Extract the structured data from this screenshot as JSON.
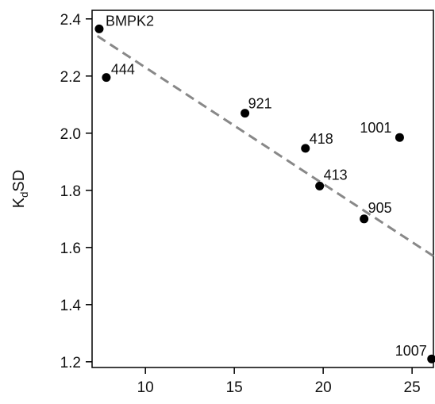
{
  "chart_data": {
    "type": "scatter",
    "title": "",
    "xlabel": "",
    "ylabel": "SD",
    "ylabel_prefix": "K",
    "ylabel_subscript": "d",
    "xlim": [
      7.0,
      26.2
    ],
    "ylim": [
      1.18,
      2.43
    ],
    "xticks": [
      10,
      15,
      20,
      25
    ],
    "xtick_labels": [
      "10",
      "15",
      "20",
      "25"
    ],
    "yticks": [
      1.2,
      1.4,
      1.6,
      1.8,
      2.0,
      2.2,
      2.4
    ],
    "ytick_labels": [
      "1.2",
      "1.4",
      "1.6",
      "1.8",
      "2.0",
      "2.2",
      "2.4"
    ],
    "grid": false,
    "points": [
      {
        "label": "BMPK2",
        "x": 7.4,
        "y": 2.365
      },
      {
        "label": "444",
        "x": 7.8,
        "y": 2.195
      },
      {
        "label": "921",
        "x": 15.6,
        "y": 2.07
      },
      {
        "label": "418",
        "x": 19.0,
        "y": 1.947
      },
      {
        "label": "1001",
        "x": 24.3,
        "y": 1.985
      },
      {
        "label": "413",
        "x": 19.8,
        "y": 1.815
      },
      {
        "label": "905",
        "x": 22.3,
        "y": 1.7
      },
      {
        "label": "1007",
        "x": 26.1,
        "y": 1.21
      }
    ],
    "trend_line": {
      "style": "dashed",
      "color": "#888888",
      "x": [
        7.3,
        26.2
      ],
      "y": [
        2.34,
        1.57
      ]
    },
    "colors": {
      "point": "#000000",
      "axis": "#000000",
      "trend": "#888888"
    }
  }
}
